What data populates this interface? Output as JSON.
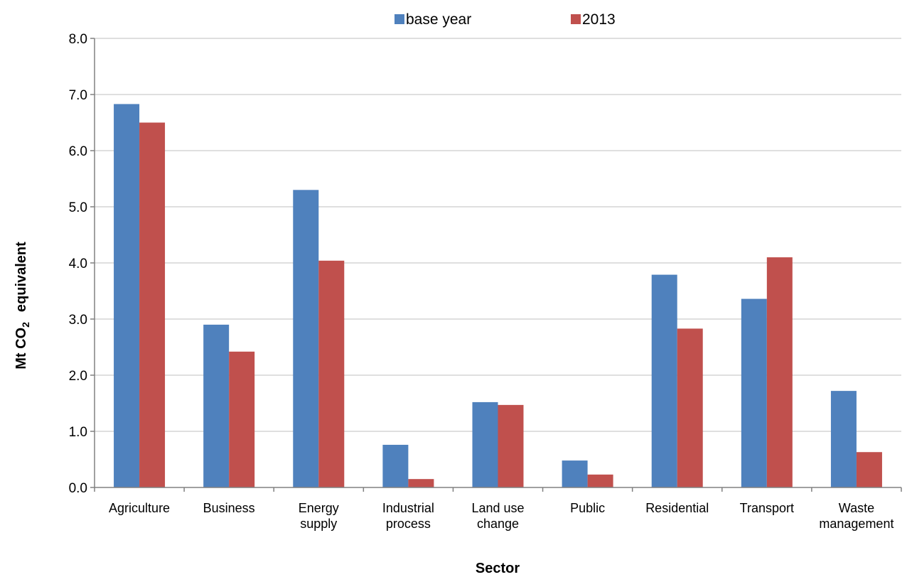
{
  "chart_data": {
    "type": "bar",
    "title": "",
    "xlabel": "Sector",
    "ylabel": {
      "prefix": "Mt CO",
      "subscript": "2",
      "suffix": "equivalent"
    },
    "ylim": [
      0,
      8
    ],
    "ytick_step": 1,
    "ytick_labels": [
      "0.0",
      "1.0",
      "2.0",
      "3.0",
      "4.0",
      "5.0",
      "6.0",
      "7.0",
      "8.0"
    ],
    "grid": true,
    "legend_position": "top",
    "categories": [
      [
        "Agriculture"
      ],
      [
        "Business"
      ],
      [
        "Energy",
        "supply"
      ],
      [
        "Industrial",
        "process"
      ],
      [
        "Land use",
        "change"
      ],
      [
        "Public"
      ],
      [
        "Residential"
      ],
      [
        "Transport"
      ],
      [
        "Waste",
        "management"
      ]
    ],
    "series": [
      {
        "name": "base year",
        "color": "#4f81bd",
        "values": [
          6.83,
          2.9,
          5.3,
          0.76,
          1.52,
          0.48,
          3.79,
          3.36,
          1.72
        ]
      },
      {
        "name": "2013",
        "color": "#c0504d",
        "values": [
          6.5,
          2.42,
          4.04,
          0.15,
          1.47,
          0.23,
          2.83,
          4.1,
          0.63
        ]
      }
    ]
  }
}
